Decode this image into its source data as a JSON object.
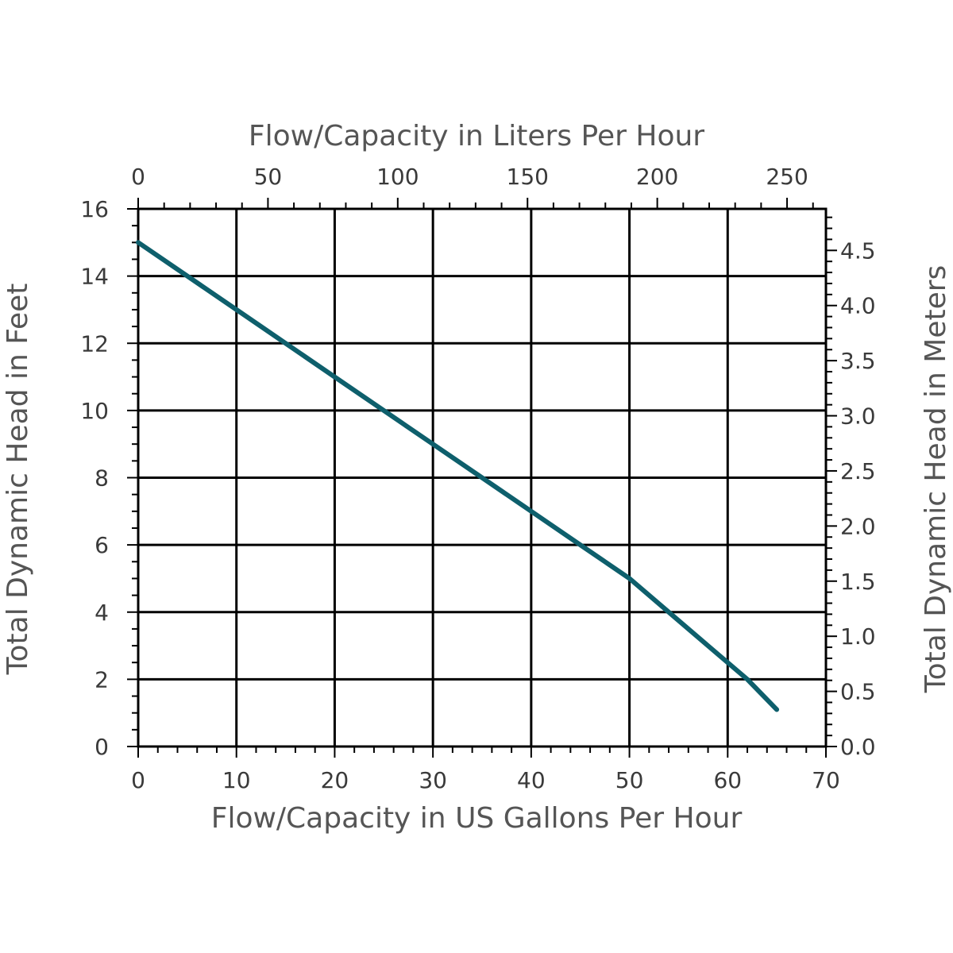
{
  "chart_data": {
    "type": "line",
    "title": "",
    "xlabel": "Flow/Capacity in US Gallons Per Hour",
    "ylabel": "Total Dynamic Head in Feet",
    "x2label": "Flow/Capacity in Liters Per Hour",
    "y2label": "Total Dynamic Head in Meters",
    "xlim": [
      0,
      70
    ],
    "ylim": [
      0,
      16
    ],
    "x_ticks": [
      0,
      10,
      20,
      30,
      40,
      50,
      60,
      70
    ],
    "y_ticks": [
      0,
      2,
      4,
      6,
      8,
      10,
      12,
      14,
      16
    ],
    "x2_ticks": [
      "0",
      "50",
      "100",
      "150",
      "200",
      "250"
    ],
    "x2_tick_values_lph": [
      0,
      50,
      100,
      150,
      200,
      250
    ],
    "y2_ticks": [
      "0.0",
      "0.5",
      "1.0",
      "1.5",
      "2.0",
      "2.5",
      "3.0",
      "3.5",
      "4.0",
      "4.5"
    ],
    "y2_tick_values_m": [
      0.0,
      0.5,
      1.0,
      1.5,
      2.0,
      2.5,
      3.0,
      3.5,
      4.0,
      4.5
    ],
    "grid": true,
    "series": [
      {
        "color": "#0e5f6c",
        "x": [
          0,
          10,
          20,
          30,
          40,
          45,
          50,
          54,
          58,
          62,
          65
        ],
        "y": [
          15.0,
          13.0,
          11.0,
          9.0,
          7.0,
          6.0,
          5.0,
          4.0,
          3.0,
          2.0,
          1.1
        ]
      }
    ]
  }
}
